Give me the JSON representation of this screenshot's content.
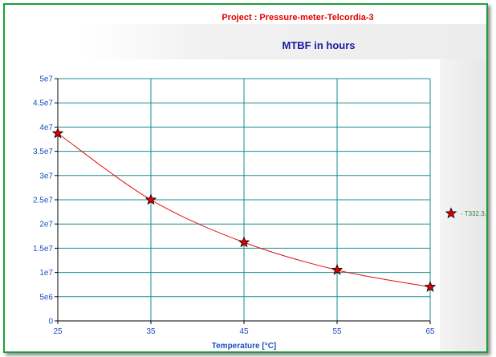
{
  "header": {
    "project_title": "Project : Pressure-meter-Telcordia-3",
    "chart_title": "MTBF in hours"
  },
  "colors": {
    "frame": "#1f9e3b",
    "project_title": "#e00000",
    "chart_title": "#1a1aa0",
    "axis_text": "#1e4fc0",
    "grid": "#1a8c8c",
    "line": "#e01010",
    "marker_fill": "#e00000",
    "legend_text": "#2e8b3a"
  },
  "chart_data": {
    "type": "line",
    "title": "MTBF in hours",
    "xlabel": "Temperature [°C]",
    "ylabel": "",
    "x": [
      25,
      35,
      45,
      55,
      65
    ],
    "series": [
      {
        "name": "- T332.3,",
        "marker": "star",
        "values": [
          38700000,
          25000000,
          16200000,
          10500000,
          7000000
        ]
      }
    ],
    "xlim": [
      25,
      65
    ],
    "ylim": [
      0,
      50000000
    ],
    "xticks": [
      "25",
      "35",
      "45",
      "55",
      "65"
    ],
    "yticks": [
      "0",
      "5e6",
      "1e7",
      "1.5e7",
      "2e7",
      "2.5e7",
      "3e7",
      "3.5e7",
      "4e7",
      "4.5e7",
      "5e7"
    ],
    "ytick_values": [
      0,
      5000000,
      10000000,
      15000000,
      20000000,
      25000000,
      30000000,
      35000000,
      40000000,
      45000000,
      50000000
    ],
    "grid": true,
    "legend_position": "right"
  }
}
